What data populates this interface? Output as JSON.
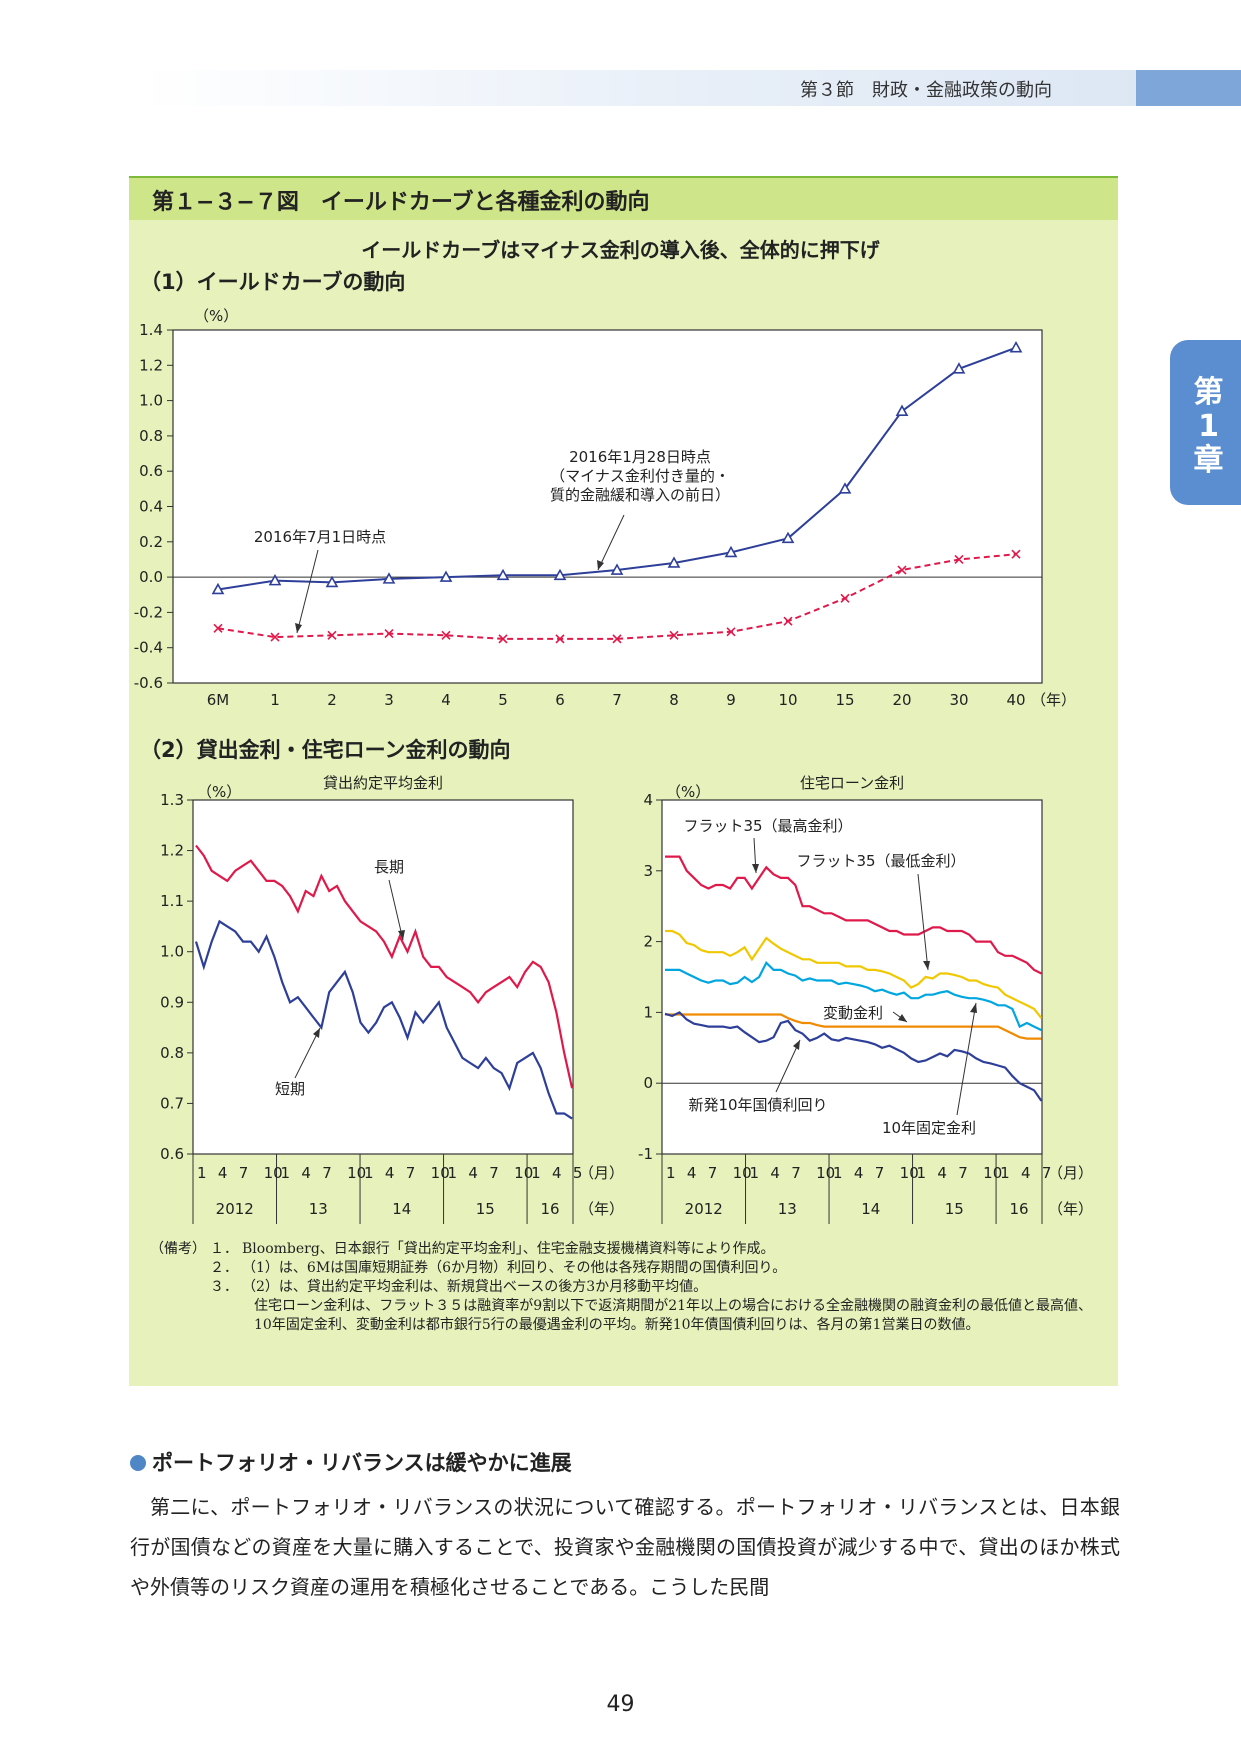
{
  "header": {
    "section": "第３節　財政・金融政策の動向"
  },
  "chapter_tab": {
    "line1": "第",
    "line2": "1",
    "line3": "章"
  },
  "figure": {
    "title": "第１−３−７図　イールドカーブと各種金利の動向",
    "subtitle": "イールドカーブはマイナス金利の導入後、全体的に押下げ",
    "panel1_title": "（1）イールドカーブの動向",
    "panel2_title": "（2）貸出金利・住宅ローン金利の動向"
  },
  "chart_data": [
    {
      "type": "line",
      "title": "（1）イールドカーブの動向",
      "ylabel": "（%）",
      "x_unit": "（年）",
      "ylim": [
        -0.6,
        1.4
      ],
      "y_ticks": [
        "1.4",
        "1.2",
        "1.0",
        "0.8",
        "0.6",
        "0.4",
        "0.2",
        "0.0",
        "-0.2",
        "-0.4",
        "-0.6"
      ],
      "categories": [
        "6M",
        "1",
        "2",
        "3",
        "4",
        "5",
        "6",
        "7",
        "8",
        "9",
        "10",
        "15",
        "20",
        "30",
        "40"
      ],
      "series": [
        {
          "label": "2016年1月28日時点（マイナス金利付き量的・質的金融緩和導入の前日）",
          "color": "#2e3f9a",
          "marker": "triangle",
          "values": [
            -0.07,
            -0.02,
            -0.03,
            -0.01,
            0.0,
            0.01,
            0.01,
            0.04,
            0.08,
            0.14,
            0.22,
            0.5,
            0.94,
            1.18,
            1.3
          ]
        },
        {
          "label": "2016年7月1日時点",
          "color": "#e0194b",
          "marker": "x",
          "dashed": true,
          "values": [
            -0.29,
            -0.34,
            -0.33,
            -0.32,
            -0.33,
            -0.35,
            -0.35,
            -0.35,
            -0.33,
            -0.31,
            -0.25,
            -0.12,
            0.04,
            0.1,
            0.13
          ]
        }
      ],
      "annotations": [
        {
          "lines": [
            "2016年1月28日時点",
            "（マイナス金利付き量的・",
            "質的金融緩和導入の前日）"
          ]
        },
        {
          "lines": [
            "2016年7月1日時点"
          ]
        }
      ]
    },
    {
      "type": "line",
      "title": "貸出約定平均金利",
      "ylabel": "（%）",
      "ylim": [
        0.6,
        1.3
      ],
      "y_ticks": [
        "1.3",
        "1.2",
        "1.1",
        "1.0",
        "0.9",
        "0.8",
        "0.7",
        "0.6"
      ],
      "x_months": "2012-01 to 2016-05",
      "x_tick_labels": [
        "1",
        "4",
        "7",
        "10",
        "1",
        "4",
        "7",
        "10",
        "1",
        "4",
        "7",
        "10",
        "1",
        "4",
        "7",
        "10",
        "1",
        "4",
        "5"
      ],
      "x_unit_month": "（月）",
      "years": [
        "2012",
        "13",
        "14",
        "15",
        "16"
      ],
      "x_unit_year": "（年）",
      "series": [
        {
          "name": "長期",
          "color": "#e0194b",
          "values": [
            1.21,
            1.19,
            1.16,
            1.15,
            1.14,
            1.16,
            1.17,
            1.18,
            1.16,
            1.14,
            1.14,
            1.13,
            1.11,
            1.08,
            1.12,
            1.11,
            1.15,
            1.12,
            1.13,
            1.1,
            1.08,
            1.06,
            1.05,
            1.04,
            1.02,
            0.99,
            1.03,
            1.0,
            1.04,
            0.99,
            0.97,
            0.97,
            0.95,
            0.94,
            0.93,
            0.92,
            0.9,
            0.92,
            0.93,
            0.94,
            0.95,
            0.93,
            0.96,
            0.98,
            0.97,
            0.94,
            0.88,
            0.8,
            0.73
          ]
        },
        {
          "name": "短期",
          "color": "#2e3f9a",
          "values": [
            1.02,
            0.97,
            1.02,
            1.06,
            1.05,
            1.04,
            1.02,
            1.02,
            1.0,
            1.03,
            0.99,
            0.94,
            0.9,
            0.91,
            0.89,
            0.87,
            0.85,
            0.92,
            0.94,
            0.96,
            0.92,
            0.86,
            0.84,
            0.86,
            0.89,
            0.9,
            0.87,
            0.83,
            0.88,
            0.86,
            0.88,
            0.9,
            0.85,
            0.82,
            0.79,
            0.78,
            0.77,
            0.79,
            0.77,
            0.76,
            0.73,
            0.78,
            0.79,
            0.8,
            0.77,
            0.72,
            0.68,
            0.68,
            0.67
          ]
        }
      ],
      "annotations": [
        {
          "text": "長期"
        },
        {
          "text": "短期"
        }
      ]
    },
    {
      "type": "line",
      "title": "住宅ローン金利",
      "ylabel": "（%）",
      "ylim": [
        -1,
        4
      ],
      "y_ticks": [
        "4",
        "3",
        "2",
        "1",
        "0",
        "-1"
      ],
      "x_months": "2012-01 to 2016-07",
      "x_tick_labels": [
        "1",
        "4",
        "7",
        "10",
        "1",
        "4",
        "7",
        "10",
        "1",
        "4",
        "7",
        "10",
        "1",
        "4",
        "7",
        "10",
        "1",
        "4",
        "7"
      ],
      "x_unit_month": "（月）",
      "years": [
        "2012",
        "13",
        "14",
        "15",
        "16"
      ],
      "x_unit_year": "（年）",
      "series": [
        {
          "name": "フラット35（最高金利）",
          "color": "#e0194b",
          "values": [
            3.2,
            3.2,
            3.2,
            3.0,
            2.9,
            2.8,
            2.75,
            2.8,
            2.8,
            2.75,
            2.9,
            2.9,
            2.75,
            2.9,
            3.05,
            2.95,
            2.9,
            2.9,
            2.8,
            2.5,
            2.5,
            2.45,
            2.4,
            2.4,
            2.35,
            2.3,
            2.3,
            2.3,
            2.3,
            2.25,
            2.2,
            2.15,
            2.15,
            2.1,
            2.1,
            2.1,
            2.15,
            2.2,
            2.2,
            2.15,
            2.15,
            2.15,
            2.1,
            2.0,
            2.0,
            2.0,
            1.85,
            1.8,
            1.8,
            1.75,
            1.7,
            1.6,
            1.55
          ]
        },
        {
          "name": "フラット35（最低金利）",
          "color": "#f0c800",
          "values": [
            2.15,
            2.15,
            2.1,
            1.98,
            1.95,
            1.88,
            1.85,
            1.85,
            1.85,
            1.8,
            1.85,
            1.92,
            1.75,
            1.9,
            2.05,
            1.97,
            1.9,
            1.85,
            1.8,
            1.75,
            1.75,
            1.7,
            1.7,
            1.7,
            1.7,
            1.65,
            1.65,
            1.65,
            1.6,
            1.6,
            1.58,
            1.55,
            1.5,
            1.45,
            1.35,
            1.4,
            1.5,
            1.48,
            1.55,
            1.55,
            1.53,
            1.5,
            1.45,
            1.45,
            1.4,
            1.37,
            1.35,
            1.25,
            1.2,
            1.15,
            1.1,
            1.05,
            0.92
          ]
        },
        {
          "name": "変動金利",
          "color": "#00a6e0",
          "values": [
            1.6,
            1.6,
            1.6,
            1.55,
            1.5,
            1.45,
            1.42,
            1.45,
            1.45,
            1.4,
            1.42,
            1.5,
            1.43,
            1.5,
            1.7,
            1.6,
            1.6,
            1.55,
            1.52,
            1.45,
            1.48,
            1.45,
            1.45,
            1.45,
            1.4,
            1.42,
            1.4,
            1.38,
            1.35,
            1.3,
            1.32,
            1.28,
            1.25,
            1.28,
            1.2,
            1.2,
            1.25,
            1.25,
            1.28,
            1.3,
            1.25,
            1.22,
            1.2,
            1.2,
            1.18,
            1.15,
            1.1,
            1.1,
            1.05,
            0.8,
            0.85,
            0.8,
            0.75
          ]
        },
        {
          "name": "10年固定金利",
          "color": "#f08a00",
          "values": [
            0.97,
            0.97,
            0.97,
            0.97,
            0.97,
            0.97,
            0.97,
            0.97,
            0.97,
            0.97,
            0.97,
            0.97,
            0.97,
            0.97,
            0.97,
            0.97,
            0.97,
            0.92,
            0.88,
            0.85,
            0.85,
            0.82,
            0.8,
            0.8,
            0.8,
            0.8,
            0.8,
            0.8,
            0.8,
            0.8,
            0.8,
            0.8,
            0.8,
            0.8,
            0.8,
            0.8,
            0.8,
            0.8,
            0.8,
            0.8,
            0.8,
            0.8,
            0.8,
            0.8,
            0.8,
            0.8,
            0.8,
            0.75,
            0.7,
            0.65,
            0.63,
            0.63,
            0.63
          ]
        },
        {
          "name": "新発10年国債利回り",
          "color": "#2e3f9a",
          "values": [
            0.98,
            0.95,
            1.0,
            0.9,
            0.84,
            0.82,
            0.8,
            0.8,
            0.8,
            0.78,
            0.8,
            0.72,
            0.65,
            0.58,
            0.6,
            0.65,
            0.85,
            0.88,
            0.75,
            0.7,
            0.6,
            0.64,
            0.7,
            0.62,
            0.6,
            0.64,
            0.62,
            0.6,
            0.58,
            0.55,
            0.5,
            0.53,
            0.48,
            0.43,
            0.35,
            0.3,
            0.32,
            0.37,
            0.42,
            0.38,
            0.47,
            0.45,
            0.42,
            0.35,
            0.3,
            0.28,
            0.25,
            0.22,
            0.1,
            0.0,
            -0.05,
            -0.1,
            -0.25
          ]
        }
      ],
      "annotations": [
        {
          "text": "フラット35（最高金利）"
        },
        {
          "text": "フラット35（最低金利）"
        },
        {
          "text": "変動金利"
        },
        {
          "text": "新発10年国債利回り"
        },
        {
          "text": "10年固定金利"
        }
      ]
    }
  ],
  "notes": {
    "lead": "（備考）",
    "items": [
      {
        "num": "１．",
        "text": "Bloomberg、日本銀行「貸出約定平均金利」、住宅金融支援機構資料等により作成。"
      },
      {
        "num": "２．",
        "text": "（1）は、6Mは国庫短期証券（6か月物）利回り、その他は各残存期間の国債利回り。"
      },
      {
        "num": "３．",
        "text": "（2）は、貸出約定平均金利は、新規貸出ベースの後方3か月移動平均値。"
      }
    ],
    "continuation": "住宅ローン金利は、フラット３５は融資率が9割以下で返済期間が21年以上の場合における全金融機関の融資金利の最低値と最高値、10年固定金利、変動金利は都市銀行5行の最優遇金利の平均。新発10年債国債利回りは、各月の第1営業日の数値。"
  },
  "body": {
    "heading": "ポートフォリオ・リバランスは緩やかに進展",
    "paragraph": "第二に、ポートフォリオ・リバランスの状況について確認する。ポートフォリオ・リバランスとは、日本銀行が国債などの資産を大量に購入することで、投資家や金融機関の国債投資が減少する中で、貸出のほか株式や外債等のリスク資産の運用を積極化させることである。こうした民間"
  },
  "page_number": "49"
}
